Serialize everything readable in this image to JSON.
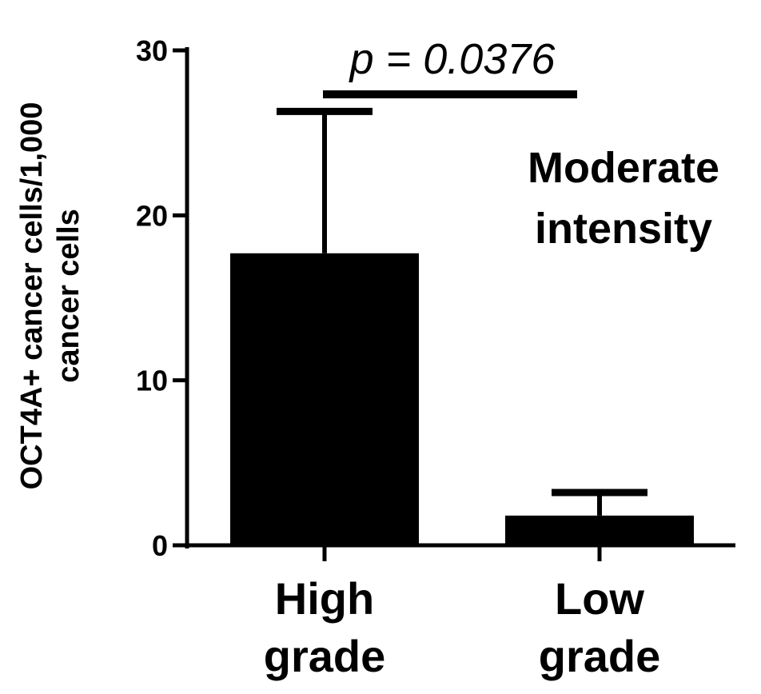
{
  "chart_data": {
    "type": "bar",
    "categories": [
      [
        "High",
        "grade"
      ],
      [
        "Low",
        "grade"
      ]
    ],
    "series": [
      {
        "values": [
          17.7,
          1.8
        ],
        "error_upper": [
          26.3,
          3.2
        ]
      }
    ],
    "ylabel": [
      "OCT4A+ cancer cells/1,000",
      "cancer cells"
    ],
    "ylim": [
      0,
      30
    ],
    "yticks": [
      0,
      10,
      20,
      30
    ],
    "grid": false,
    "annotations": {
      "significance": "p = 0.0376",
      "note": [
        "Moderate",
        "intensity"
      ]
    },
    "colors": {
      "bar": "#000000",
      "axis": "#000000"
    }
  }
}
